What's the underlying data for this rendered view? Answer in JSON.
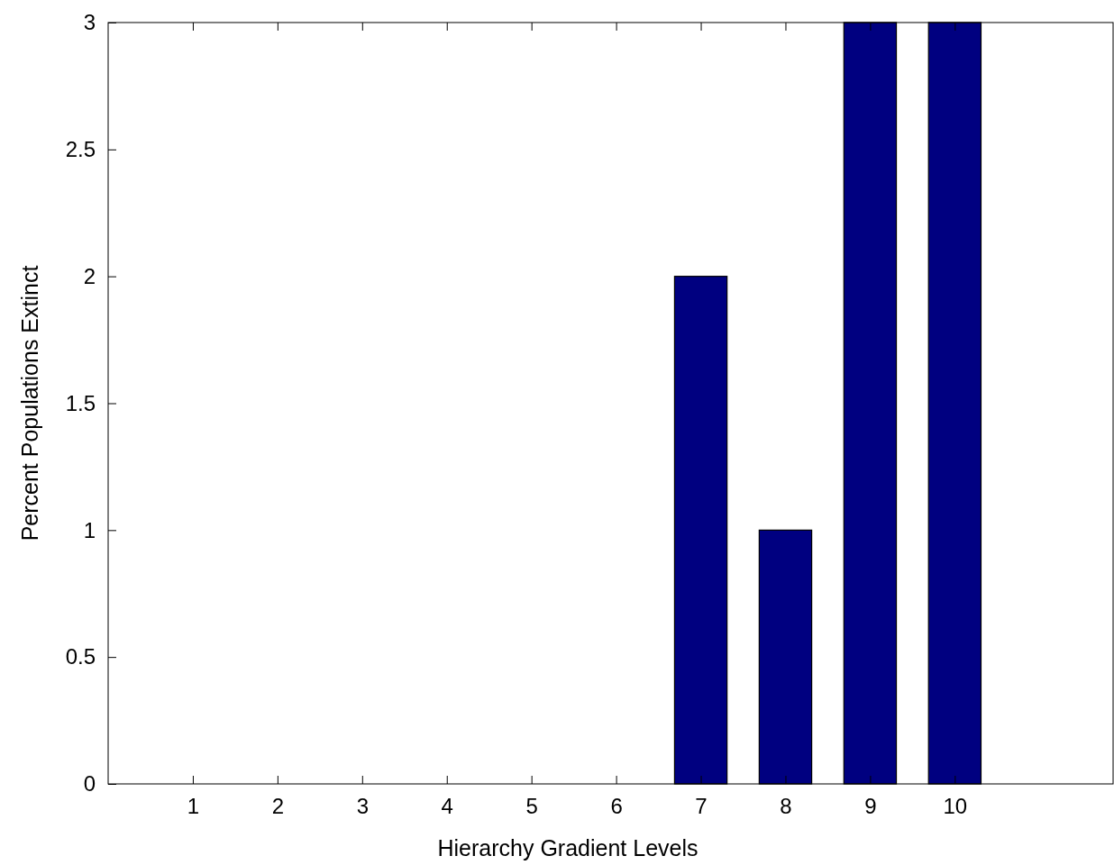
{
  "chart_data": {
    "type": "bar",
    "xlabel": "Hierarchy Gradient Levels",
    "ylabel": "Percent Populations Extinct",
    "x": [
      1,
      2,
      3,
      4,
      5,
      6,
      7,
      8,
      9,
      10
    ],
    "values": [
      0,
      0,
      0,
      0,
      0,
      0,
      2,
      1,
      3,
      3
    ],
    "color": "#000080",
    "xlim": [
      0,
      11.87
    ],
    "xticks": [
      1,
      2,
      3,
      4,
      5,
      6,
      7,
      8,
      9,
      10
    ],
    "ylim": [
      0,
      3
    ],
    "yticks": [
      0,
      0.5,
      1,
      1.5,
      2,
      2.5,
      3
    ],
    "grid": false
  }
}
